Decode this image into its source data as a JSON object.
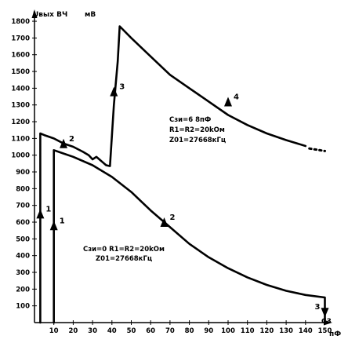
{
  "chart_data": {
    "type": "line",
    "title": "",
    "ylabel": "Uвых ВЧ",
    "yunit": "мВ",
    "xlabel": "C3",
    "xunit": "пФ",
    "xlim": [
      0,
      152
    ],
    "ylim": [
      0,
      1870
    ],
    "grid": false,
    "x_ticks": [
      10,
      20,
      30,
      40,
      50,
      60,
      70,
      80,
      90,
      100,
      110,
      120,
      130,
      140,
      150
    ],
    "y_ticks": [
      100,
      200,
      300,
      400,
      500,
      600,
      700,
      800,
      900,
      1000,
      1100,
      1200,
      1300,
      1400,
      1500,
      1600,
      1700,
      1800
    ],
    "series": [
      {
        "name": "",
        "color": "#000000",
        "points": [
          [
            3,
            0
          ],
          [
            3,
            1130
          ],
          [
            5,
            1120
          ],
          [
            10,
            1100
          ],
          [
            15,
            1070
          ],
          [
            20,
            1050
          ],
          [
            25,
            1020
          ],
          [
            28,
            1000
          ],
          [
            30,
            975
          ],
          [
            32,
            990
          ],
          [
            35,
            960
          ],
          [
            37,
            940
          ],
          [
            39,
            935
          ],
          [
            41,
            1300
          ],
          [
            43,
            1560
          ],
          [
            44,
            1770
          ],
          [
            50,
            1700
          ],
          [
            60,
            1590
          ],
          [
            70,
            1480
          ],
          [
            80,
            1400
          ],
          [
            90,
            1320
          ],
          [
            100,
            1240
          ],
          [
            110,
            1180
          ],
          [
            120,
            1130
          ],
          [
            130,
            1090
          ],
          [
            140,
            1055
          ]
        ],
        "dotted_tail": [
          [
            142,
            1040
          ],
          [
            150,
            1025
          ]
        ],
        "markers": [
          {
            "label": "1",
            "x": 3,
            "y": 650,
            "direction": "up"
          },
          {
            "label": "2",
            "x": 15,
            "y": 1070,
            "direction": "up"
          },
          {
            "label": "3",
            "x": 41,
            "y": 1380,
            "direction": "up"
          },
          {
            "label": "4",
            "x": 100,
            "y": 1320,
            "direction": "up"
          }
        ],
        "annotation": [
          "Cзи=6 8пФ",
          "R1=R2=20kОм",
          "Z01=27668кГц"
        ]
      },
      {
        "name": "",
        "color": "#000000",
        "points": [
          [
            10,
            0
          ],
          [
            10,
            1030
          ],
          [
            15,
            1010
          ],
          [
            20,
            990
          ],
          [
            30,
            940
          ],
          [
            40,
            870
          ],
          [
            50,
            780
          ],
          [
            60,
            670
          ],
          [
            67,
            600
          ],
          [
            70,
            570
          ],
          [
            80,
            470
          ],
          [
            90,
            390
          ],
          [
            100,
            325
          ],
          [
            110,
            270
          ],
          [
            120,
            225
          ],
          [
            130,
            190
          ],
          [
            140,
            165
          ],
          [
            150,
            150
          ],
          [
            150,
            0
          ]
        ],
        "markers": [
          {
            "label": "1",
            "x": 10,
            "y": 580,
            "direction": "up"
          },
          {
            "label": "2",
            "x": 67,
            "y": 600,
            "direction": "up"
          },
          {
            "label": "3",
            "x": 150,
            "y": 60,
            "direction": "down"
          }
        ],
        "annotation": [
          "Cзи=0   R1=R2=20kОм",
          "Z01=27668кГц"
        ]
      }
    ]
  }
}
